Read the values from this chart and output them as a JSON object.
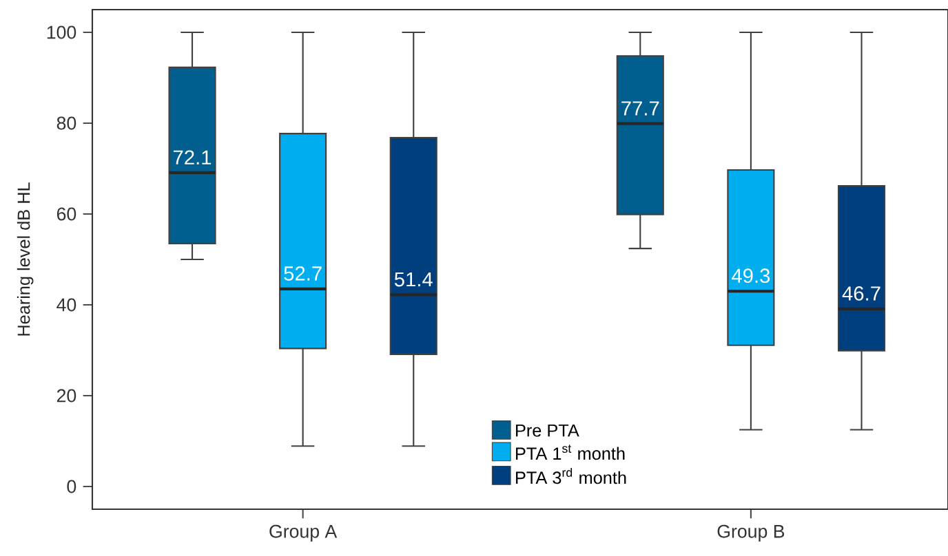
{
  "chart_data": {
    "type": "box",
    "ylabel": "Hearing level dB HL",
    "categories": [
      "Group A",
      "Group B"
    ],
    "series": [
      {
        "name": "Pre PTA",
        "color": "#005f8f",
        "boxes": [
          {
            "low": 50,
            "q1": 53.5,
            "median": 69.1,
            "q3": 92.3,
            "high": 100
          },
          {
            "low": 52.4,
            "q1": 59.9,
            "median": 79.9,
            "q3": 94.8,
            "high": 100
          }
        ],
        "value_labels": [
          "72.1",
          "77.7"
        ]
      },
      {
        "name": "PTA 1$^{st}$ month",
        "color": "#00aeef",
        "boxes": [
          {
            "low": 8.9,
            "q1": 30.4,
            "median": 43.5,
            "q3": 77.7,
            "high": 100
          },
          {
            "low": 12.5,
            "q1": 31.1,
            "median": 43.0,
            "q3": 69.7,
            "high": 100
          }
        ],
        "value_labels": [
          "52.7",
          "49.3"
        ]
      },
      {
        "name": "PTA 3$^{rd}$ month",
        "color": "#003f7d",
        "boxes": [
          {
            "low": 8.9,
            "q1": 29.1,
            "median": 42.2,
            "q3": 76.8,
            "high": 100
          },
          {
            "low": 12.5,
            "q1": 29.9,
            "median": 39.1,
            "q3": 66.2,
            "high": 100
          }
        ],
        "value_labels": [
          "51.4",
          "46.7"
        ]
      }
    ],
    "ylim": [
      -5,
      105
    ],
    "yticks": [
      0,
      20,
      40,
      60,
      80,
      100
    ],
    "legend": "bottom",
    "grid": false
  }
}
